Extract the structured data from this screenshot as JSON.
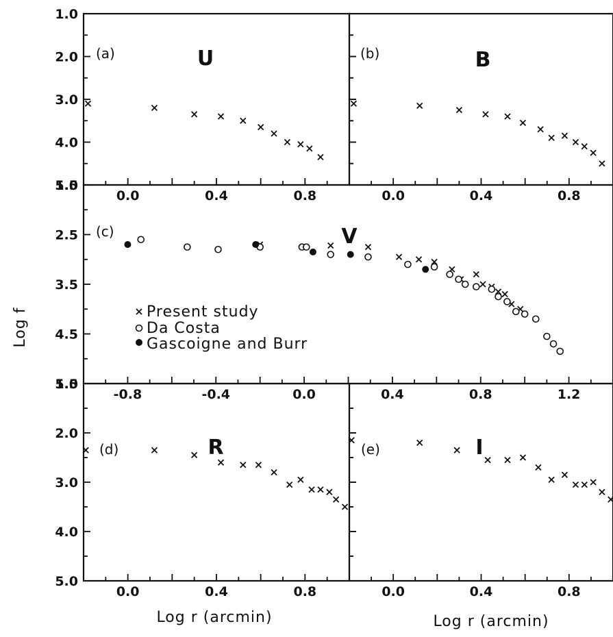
{
  "ylabel": "Log f",
  "xlabel_left": "Log r (arcmin)",
  "xlabel_right": "Log r (arcmin)",
  "legend": {
    "present": "Present study",
    "dacosta": "Da Costa",
    "gascoigne": "Gascoigne and Burr"
  },
  "chart_data": [
    {
      "type": "scatter",
      "panel": "(a)",
      "band": "U",
      "xlim": [
        -0.2,
        1.0
      ],
      "ylim": [
        1.0,
        5.0
      ],
      "x_inverted": false,
      "y_inverted": true,
      "x_ticks": [
        "0.0",
        "0.4",
        "0.8"
      ],
      "y_ticks": [
        "1.0",
        "2.0",
        "3.0",
        "4.0",
        "5.0"
      ],
      "series": [
        {
          "name": "Present study",
          "marker": "x",
          "x": [
            -0.18,
            0.12,
            0.3,
            0.42,
            0.52,
            0.6,
            0.66,
            0.72,
            0.78,
            0.82,
            0.87
          ],
          "y": [
            3.1,
            3.2,
            3.35,
            3.4,
            3.5,
            3.65,
            3.8,
            4.0,
            4.05,
            4.15,
            4.35
          ]
        }
      ]
    },
    {
      "type": "scatter",
      "panel": "(b)",
      "band": "B",
      "xlim": [
        -0.2,
        1.0
      ],
      "ylim": [
        1.0,
        5.0
      ],
      "y_inverted": true,
      "x_ticks": [
        "0.0",
        "0.4",
        "0.8"
      ],
      "y_ticks": [],
      "series": [
        {
          "name": "Present study",
          "marker": "x",
          "x": [
            -0.18,
            0.12,
            0.3,
            0.42,
            0.52,
            0.59,
            0.67,
            0.72,
            0.78,
            0.83,
            0.87,
            0.91,
            0.95
          ],
          "y": [
            3.1,
            3.15,
            3.25,
            3.35,
            3.4,
            3.55,
            3.7,
            3.9,
            3.85,
            4.0,
            4.1,
            4.25,
            4.5
          ]
        }
      ]
    },
    {
      "type": "scatter",
      "panel": "(c)",
      "band": "V",
      "xlim": [
        -1.0,
        1.4
      ],
      "ylim": [
        1.5,
        5.5
      ],
      "y_inverted": true,
      "x_ticks": [
        "-0.8",
        "-0.4",
        "0.0",
        "0.4",
        "0.8",
        "1.2"
      ],
      "y_ticks": [
        "1.5",
        "2.5",
        "3.5",
        "4.5",
        "5.5"
      ],
      "series": [
        {
          "name": "Present study",
          "marker": "x",
          "x": [
            -0.2,
            0.12,
            0.29,
            0.43,
            0.52,
            0.59,
            0.67,
            0.71,
            0.78,
            0.81,
            0.85,
            0.88,
            0.91,
            0.94,
            0.98
          ],
          "y": [
            2.7,
            2.72,
            2.75,
            2.95,
            3.0,
            3.05,
            3.2,
            3.4,
            3.3,
            3.5,
            3.55,
            3.65,
            3.7,
            3.9,
            4.0
          ]
        },
        {
          "name": "Da Costa",
          "marker": "open",
          "x": [
            -0.74,
            -0.53,
            -0.39,
            -0.2,
            -0.01,
            0.01,
            0.12,
            0.29,
            0.47,
            0.59,
            0.66,
            0.7,
            0.73,
            0.78,
            0.85,
            0.88,
            0.92,
            0.96,
            1.0,
            1.05,
            1.1,
            1.13,
            1.16
          ],
          "y": [
            2.6,
            2.75,
            2.8,
            2.75,
            2.75,
            2.75,
            2.9,
            2.95,
            3.1,
            3.15,
            3.3,
            3.4,
            3.5,
            3.55,
            3.6,
            3.75,
            3.85,
            4.05,
            4.1,
            4.2,
            4.55,
            4.7,
            4.85
          ]
        },
        {
          "name": "Gascoigne and Burr",
          "marker": "filled",
          "x": [
            -0.8,
            -0.22,
            0.04,
            0.21,
            0.55
          ],
          "y": [
            2.7,
            2.7,
            2.85,
            2.9,
            3.2
          ]
        }
      ]
    },
    {
      "type": "scatter",
      "panel": "(d)",
      "band": "R",
      "xlim": [
        -0.2,
        1.0
      ],
      "ylim": [
        1.0,
        5.0
      ],
      "y_inverted": true,
      "x_ticks": [
        "0.0",
        "0.4",
        "0.8"
      ],
      "y_ticks": [
        "1.0",
        "2.0",
        "3.0",
        "4.0",
        "5.0"
      ],
      "series": [
        {
          "name": "Present study",
          "marker": "x",
          "x": [
            -0.19,
            0.12,
            0.3,
            0.42,
            0.52,
            0.59,
            0.66,
            0.73,
            0.78,
            0.83,
            0.87,
            0.91,
            0.94,
            0.98
          ],
          "y": [
            2.35,
            2.35,
            2.45,
            2.6,
            2.65,
            2.65,
            2.8,
            3.05,
            2.95,
            3.15,
            3.15,
            3.2,
            3.35,
            3.5
          ]
        }
      ]
    },
    {
      "type": "scatter",
      "panel": "(e)",
      "band": "I",
      "xlim": [
        -0.2,
        1.0
      ],
      "ylim": [
        1.0,
        5.0
      ],
      "y_inverted": true,
      "x_ticks": [
        "0.0",
        "0.4",
        "0.8"
      ],
      "y_ticks": [],
      "series": [
        {
          "name": "Present study",
          "marker": "x",
          "x": [
            -0.19,
            0.12,
            0.29,
            0.43,
            0.52,
            0.59,
            0.66,
            0.72,
            0.78,
            0.83,
            0.87,
            0.91,
            0.95,
            0.99
          ],
          "y": [
            2.15,
            2.2,
            2.35,
            2.55,
            2.55,
            2.5,
            2.7,
            2.95,
            2.85,
            3.05,
            3.05,
            3.0,
            3.2,
            3.35
          ]
        }
      ]
    }
  ]
}
